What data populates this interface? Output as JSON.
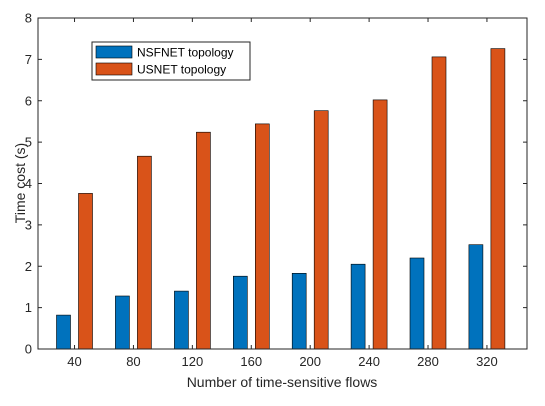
{
  "chart_data": {
    "type": "bar",
    "title": "",
    "xlabel": "Number of time-sensitive flows",
    "ylabel": "Time cost (s)",
    "categories": [
      "40",
      "80",
      "120",
      "160",
      "200",
      "240",
      "280",
      "320"
    ],
    "ylim": [
      0,
      8
    ],
    "yticks": [
      0,
      1,
      2,
      3,
      4,
      5,
      6,
      7,
      8
    ],
    "grid": false,
    "legend_position": "top-left",
    "series": [
      {
        "name": "NSFNET topology",
        "color": "#0072BD",
        "values": [
          0.82,
          1.28,
          1.4,
          1.76,
          1.83,
          2.05,
          2.2,
          2.52
        ]
      },
      {
        "name": "USNET topology",
        "color": "#D95319",
        "values": [
          3.76,
          4.66,
          5.24,
          5.44,
          5.76,
          6.02,
          7.06,
          7.26
        ]
      }
    ]
  }
}
